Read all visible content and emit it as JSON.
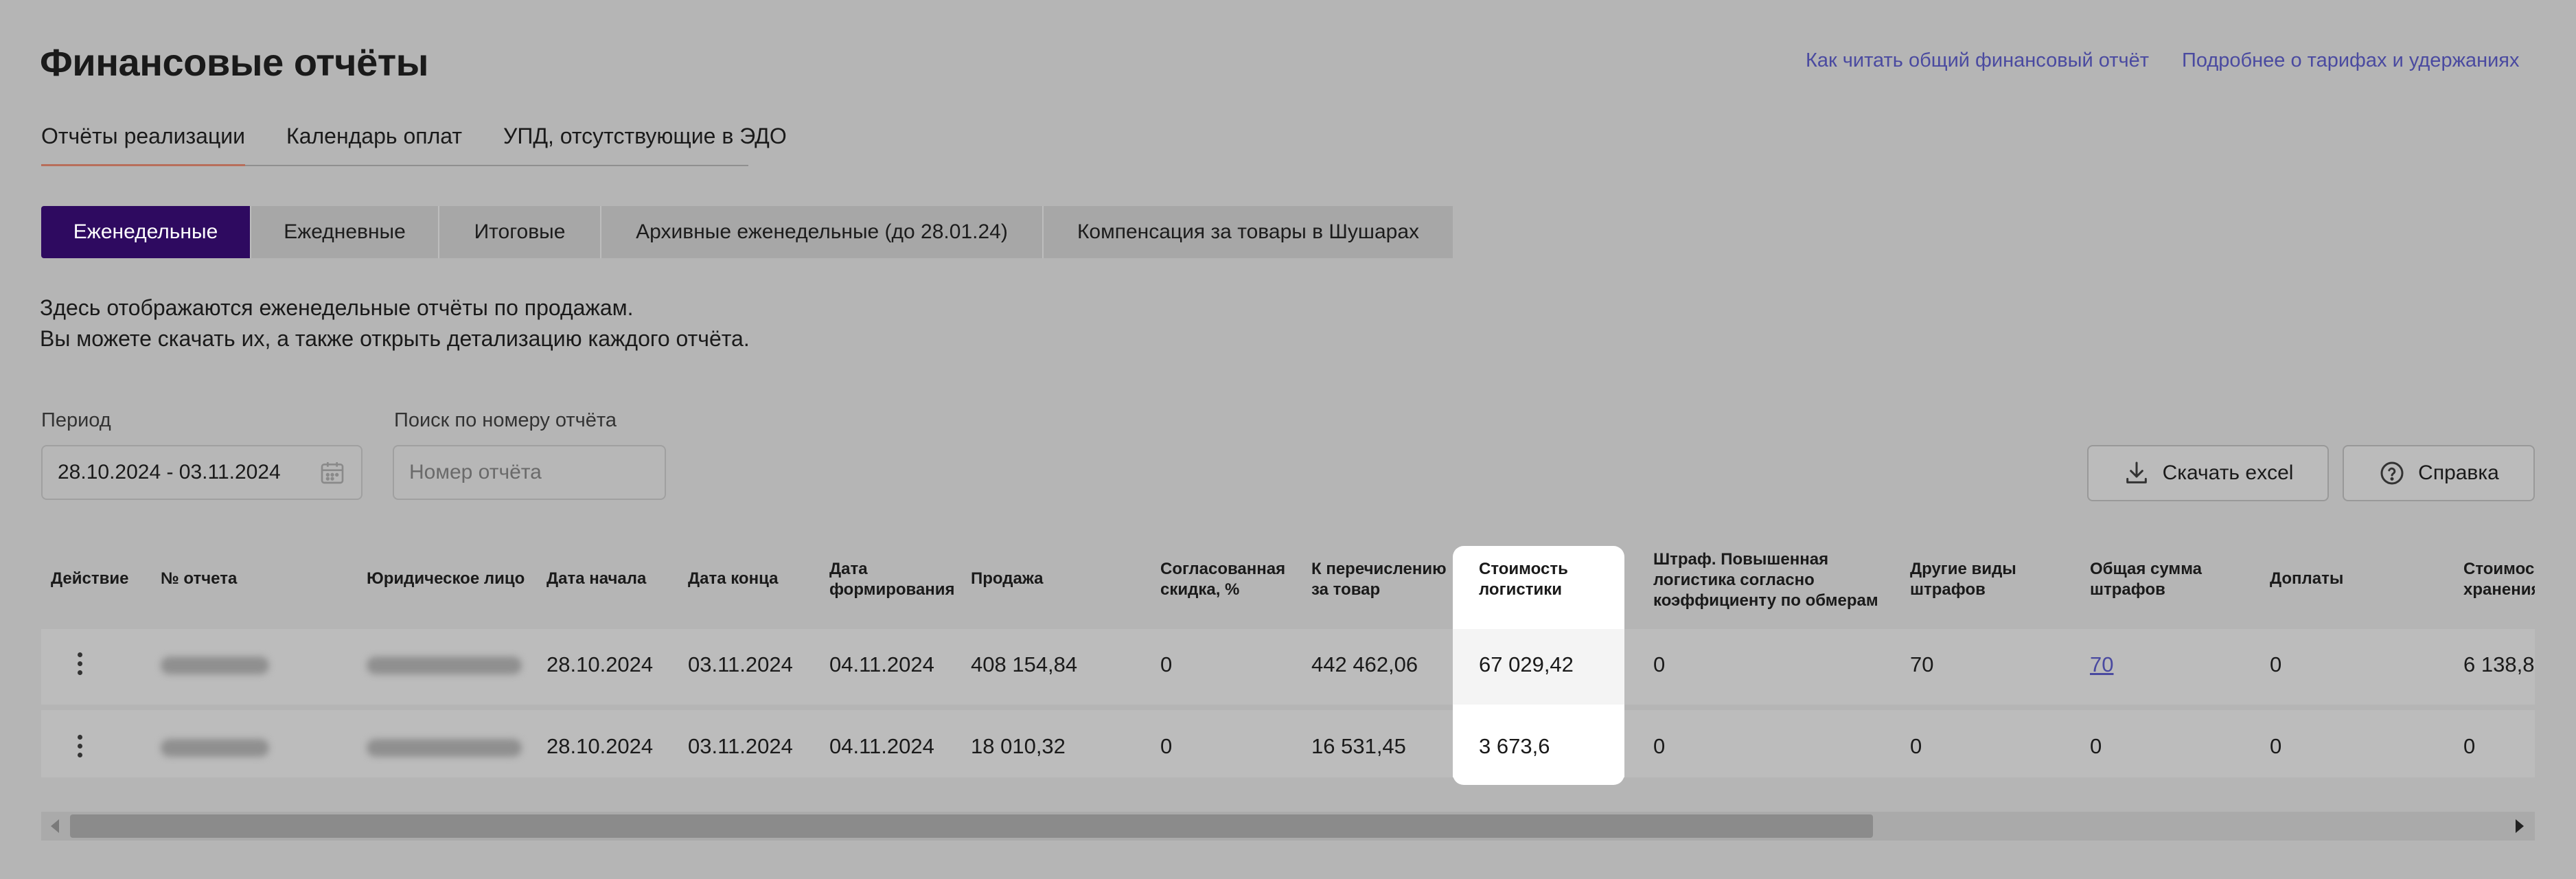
{
  "page_title": "Финансовые отчёты",
  "header_links": {
    "how_to_read": "Как читать общий финансовый отчёт",
    "tariffs": "Подробнее о тарифах и удержаниях"
  },
  "tabs": [
    "Отчёты реализации",
    "Календарь оплат",
    "УПД, отсутствующие в ЭДО"
  ],
  "active_tab": "Отчёты реализации",
  "segments": [
    "Еженедельные",
    "Ежедневные",
    "Итоговые",
    "Архивные еженедельные (до 28.01.24)",
    "Компенсация за товары в Шушарах"
  ],
  "active_segment": "Еженедельные",
  "description": {
    "line1": "Здесь отображаются еженедельные отчёты по продажам.",
    "line2": "Вы можете скачать их, а также открыть детализацию каждого отчёта."
  },
  "filters": {
    "period_label": "Период",
    "period_value": "28.10.2024 - 03.11.2024",
    "search_label": "Поиск по номеру отчёта",
    "search_placeholder": "Номер отчёта"
  },
  "buttons": {
    "download_excel": "Скачать excel",
    "help": "Справка"
  },
  "table": {
    "columns": [
      "Действие",
      "№ отчета",
      "Юридическое лицо",
      "Дата начала",
      "Дата конца",
      "Дата формирования",
      "Продажа",
      "Согласованная скидка, %",
      "К перечислению за товар",
      "Стоимость логистики",
      "Штраф. Повышенная логистика согласно коэффициенту по обмерам",
      "Другие виды штрафов",
      "Общая сумма штрафов",
      "Доплаты",
      "Стоимость хранения"
    ],
    "rows": [
      {
        "start": "28.10.2024",
        "end": "03.11.2024",
        "created": "04.11.2024",
        "sale": "408 154,84",
        "discount": "0",
        "to_transfer": "442 462,06",
        "logistics": "67 029,42",
        "penalty_logistics": "0",
        "other_penalties": "70",
        "total_penalties": "70",
        "surcharges": "0",
        "storage": "6 138,8"
      },
      {
        "start": "28.10.2024",
        "end": "03.11.2024",
        "created": "04.11.2024",
        "sale": "18 010,32",
        "discount": "0",
        "to_transfer": "16 531,45",
        "logistics": "3 673,6",
        "penalty_logistics": "0",
        "other_penalties": "0",
        "total_penalties": "0",
        "surcharges": "0",
        "storage": "0"
      }
    ]
  },
  "colors": {
    "accent": "#2e0a60",
    "link": "#4a4aa0",
    "tab_underline": "#b86e5a",
    "highlight": "#ffffff"
  },
  "icons": {
    "calendar": "calendar-icon",
    "download": "download-icon",
    "help": "question-circle-icon",
    "row_menu": "kebab-menu-icon"
  }
}
